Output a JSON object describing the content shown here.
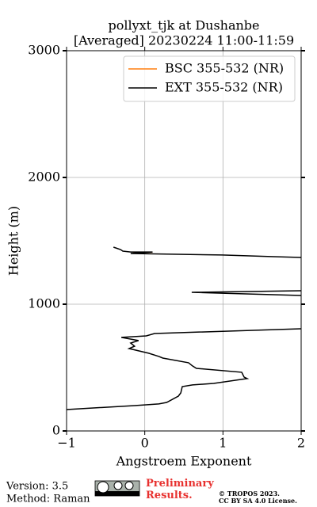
{
  "chart_data": {
    "type": "line",
    "title": "pollyxt_tjk at Dushanbe",
    "subtitle": "[Averaged] 20230224 11:00-11:59",
    "xlabel": "Angstroem Exponent",
    "ylabel": "Height (m)",
    "xlim": [
      -1,
      2
    ],
    "ylim": [
      0,
      3000
    ],
    "xticks": [
      {
        "value": -1,
        "label": "−1"
      },
      0,
      1,
      2
    ],
    "yticks": [
      0,
      1000,
      2000,
      3000
    ],
    "grid": true,
    "legend": "upper right",
    "series": [
      {
        "name": "BSC 355-532 (NR)",
        "color": "#ff7f0e",
        "x": [
          -0.15,
          0.1
        ],
        "y": [
          1410,
          1410
        ]
      },
      {
        "name": "EXT 355-532 (NR)",
        "color": "#000000",
        "x": [
          -0.4,
          -0.31,
          -0.28,
          -0.18,
          0.1,
          -0.18,
          0.99,
          1.65,
          2.0,
          null,
          2.0,
          0.6,
          2.0,
          null,
          2.0,
          0.125,
          0.02,
          -0.3,
          -0.08,
          -0.18,
          -0.13,
          -0.2,
          0.05,
          0.18,
          0.23,
          0.56,
          0.61,
          0.66,
          1.24,
          1.27,
          1.31,
          0.88,
          0.61,
          0.48,
          0.46,
          0.43,
          0.28,
          0.18,
          -0.13,
          -1.0
        ],
        "y": [
          1450,
          1431,
          1419,
          1412,
          1412,
          1400,
          1388,
          1375,
          1369,
          null,
          1106,
          1094,
          1069,
          null,
          806,
          769,
          750,
          738,
          713,
          694,
          669,
          650,
          613,
          588,
          575,
          538,
          513,
          494,
          463,
          425,
          413,
          375,
          363,
          350,
          300,
          275,
          225,
          213,
          200,
          169
        ]
      }
    ]
  },
  "footer": {
    "version": "Version: 3.5",
    "method": "Method: Raman",
    "status": "Preliminary Results.",
    "copyright": "© TROPOS 2023.",
    "license": "CC BY SA 4.0 License."
  }
}
